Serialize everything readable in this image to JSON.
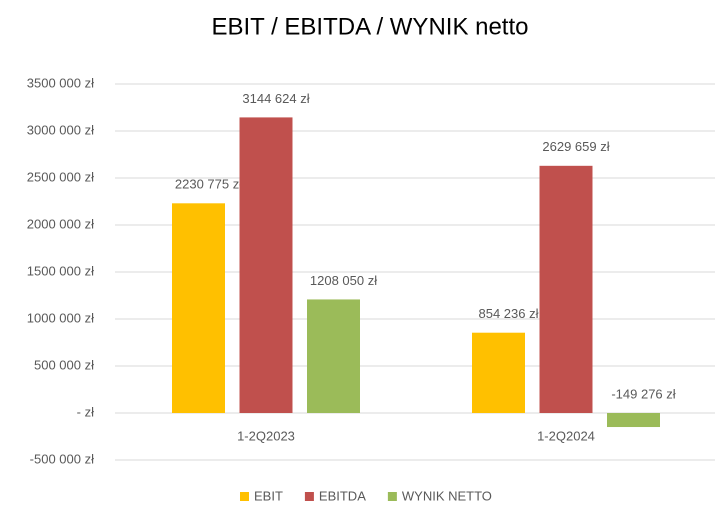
{
  "chart_data": {
    "type": "bar",
    "title": "EBIT / EBITDA / WYNIK netto",
    "categories": [
      "1-2Q2023",
      "1-2Q2024"
    ],
    "series": [
      {
        "name": "EBIT",
        "color": "#ffc000",
        "values": [
          2230775,
          854236
        ],
        "value_labels": [
          "2230 775 zł",
          "854 236 zł"
        ]
      },
      {
        "name": "EBITDA",
        "color": "#c0504d",
        "values": [
          3144624,
          2629659
        ],
        "value_labels": [
          "3144 624 zł",
          "2629 659 zł"
        ]
      },
      {
        "name": "WYNIK NETTO",
        "color": "#9bbb59",
        "values": [
          1208050,
          -149276
        ],
        "value_labels": [
          "1208 050 zł",
          "-149 276 zł"
        ]
      }
    ],
    "ylim": [
      -500000,
      3500000
    ],
    "yticks": [
      {
        "value": -500000,
        "label": "-500 000 zł"
      },
      {
        "value": 0,
        "label": "-   zł"
      },
      {
        "value": 500000,
        "label": "500 000 zł"
      },
      {
        "value": 1000000,
        "label": "1000 000 zł"
      },
      {
        "value": 1500000,
        "label": "1500 000 zł"
      },
      {
        "value": 2000000,
        "label": "2000 000 zł"
      },
      {
        "value": 2500000,
        "label": "2500 000 zł"
      },
      {
        "value": 3000000,
        "label": "3000 000 zł"
      },
      {
        "value": 3500000,
        "label": "3500 000 zł"
      }
    ],
    "grid": true,
    "legend": "bottom"
  }
}
